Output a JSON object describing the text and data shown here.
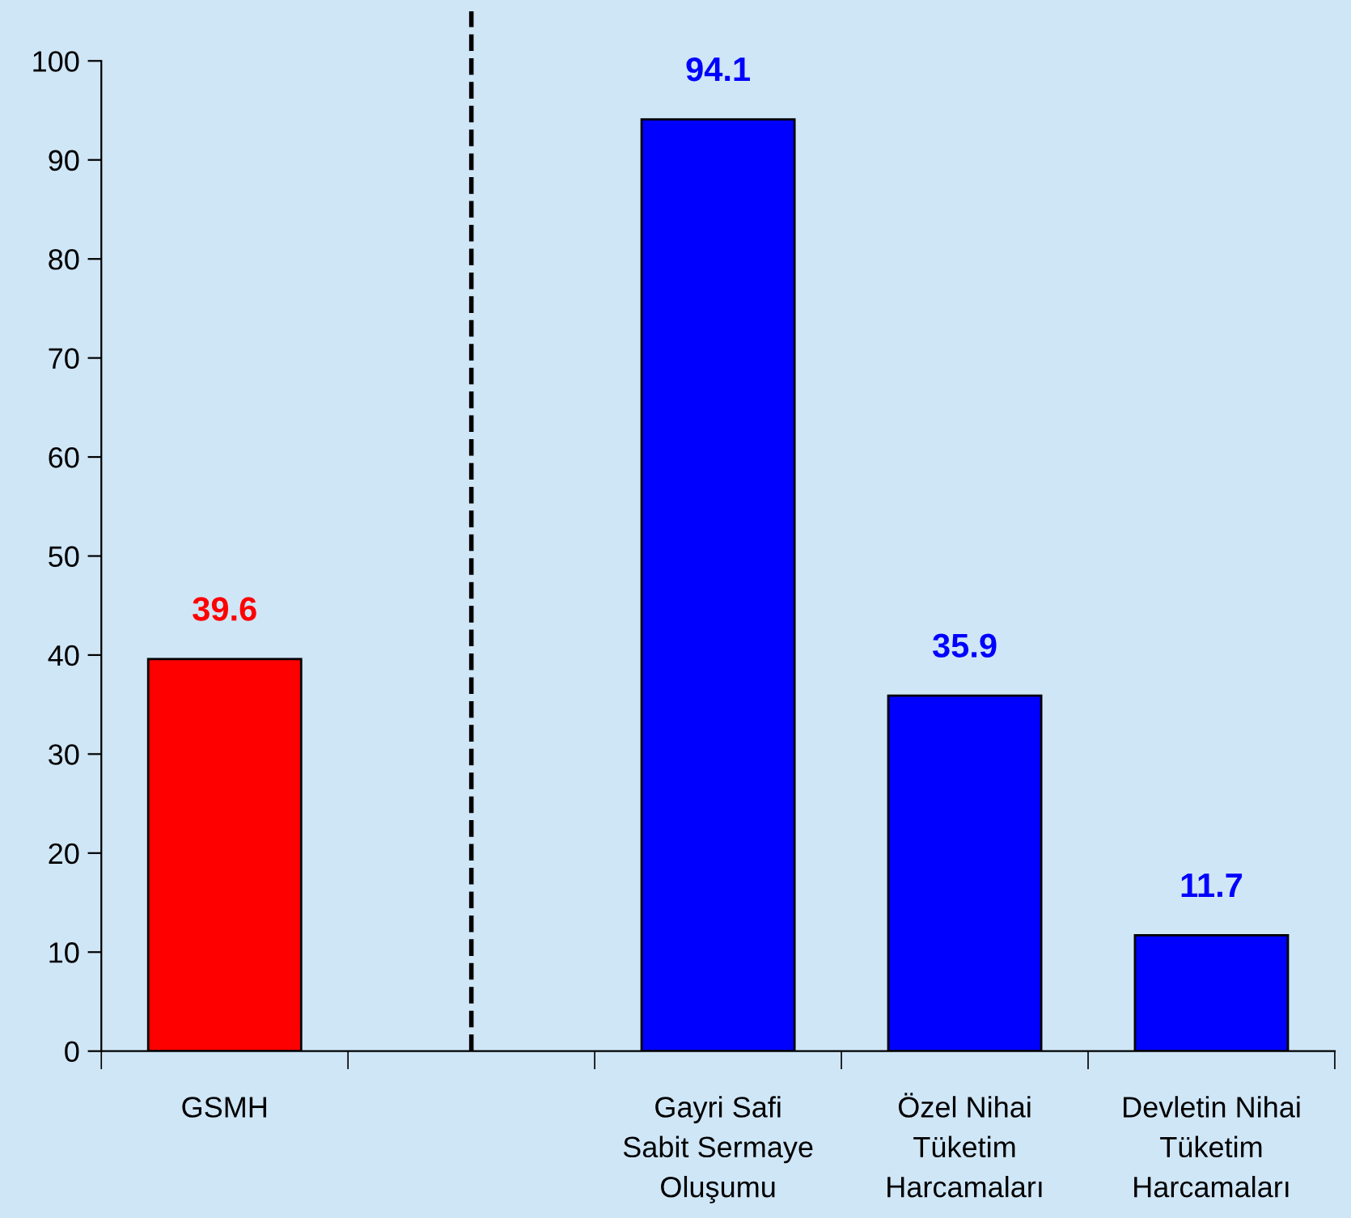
{
  "chart_data": {
    "type": "bar",
    "categories": [
      "GSMH",
      null,
      "Gayri Safi\nSabit Sermaye\nOluşumu",
      "Özel Nihai\nTüketim\nHarcamaları",
      "Devletin Nihai\nTüketim\nHarcamaları"
    ],
    "values": [
      39.6,
      null,
      94.1,
      35.9,
      11.7
    ],
    "colors": [
      "#ff0000",
      "#0000ff",
      "#0000ff",
      "#0000ff",
      "#0000ff"
    ],
    "data_labels": true,
    "ylim": [
      0,
      100
    ],
    "yticks": [
      0,
      10,
      20,
      30,
      40,
      50,
      60,
      70,
      80,
      90,
      100
    ]
  }
}
